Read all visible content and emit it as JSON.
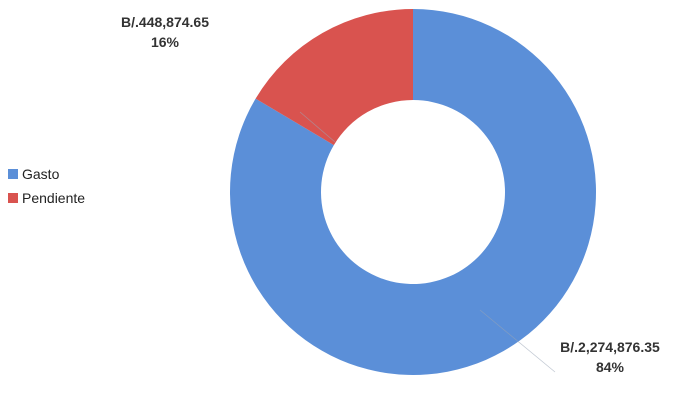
{
  "chart_data": {
    "type": "pie",
    "subtype": "donut",
    "title": "",
    "legend_position": "left",
    "slices": [
      {
        "name": "Gasto",
        "value": 2274876.35,
        "value_label": "B/.2,274,876.35",
        "percent_label": "84%",
        "color": "#5b8fd8"
      },
      {
        "name": "Pendiente",
        "value": 448874.65,
        "value_label": "B/.448,874.65",
        "percent_label": "16%",
        "color": "#d9534f"
      }
    ]
  }
}
